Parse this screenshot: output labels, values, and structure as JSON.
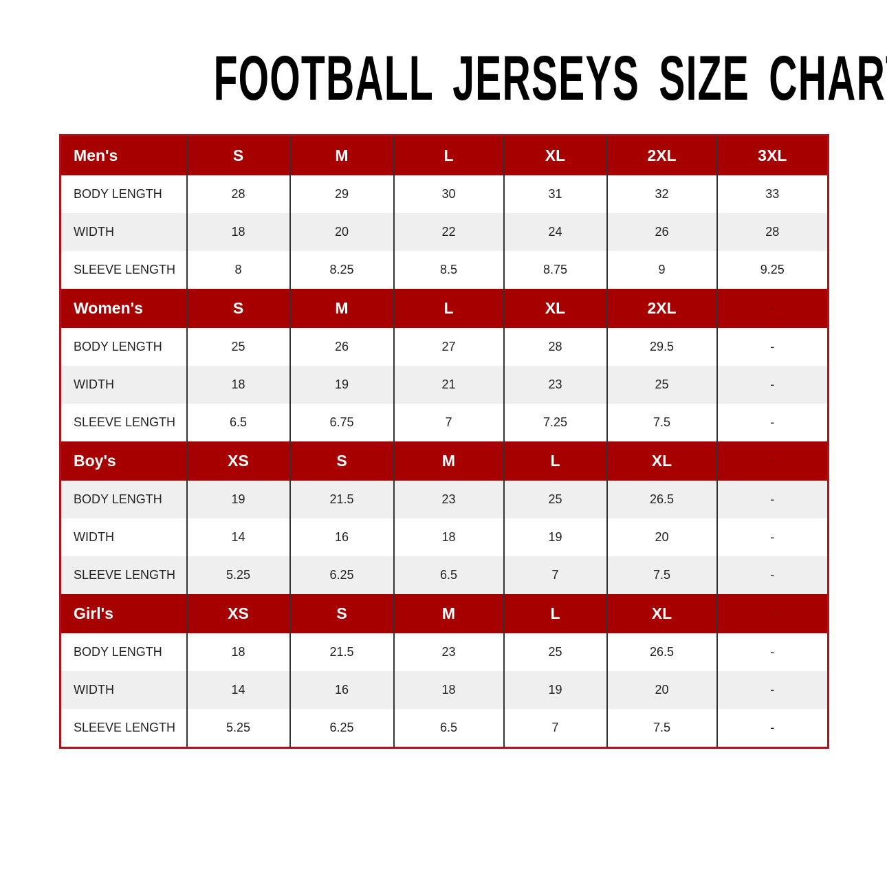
{
  "title": "FOOTBALL JERSEYS SIZE CHART",
  "sections": [
    {
      "header": [
        "Men's",
        "S",
        "M",
        "L",
        "XL",
        "2XL",
        "3XL"
      ],
      "rows": [
        [
          "BODY LENGTH",
          28,
          29,
          30,
          31,
          32,
          33
        ],
        [
          "WIDTH",
          18,
          20,
          22,
          24,
          26,
          28
        ],
        [
          "SLEEVE LENGTH",
          8,
          8.25,
          8.5,
          8.75,
          9,
          9.25
        ]
      ]
    },
    {
      "header": [
        "Women's",
        "S",
        "M",
        "L",
        "XL",
        "2XL",
        "-"
      ],
      "rows": [
        [
          "BODY LENGTH",
          25,
          26,
          27,
          28,
          29.5,
          "-"
        ],
        [
          "WIDTH",
          18,
          19,
          21,
          23,
          25,
          "-"
        ],
        [
          "SLEEVE LENGTH",
          6.5,
          6.75,
          7,
          7.25,
          7.5,
          "-"
        ]
      ]
    },
    {
      "header": [
        "Boy's",
        "XS",
        "S",
        "M",
        "L",
        "XL",
        "-"
      ],
      "rows": [
        [
          "BODY LENGTH",
          19,
          21.5,
          23,
          25,
          26.5,
          "-"
        ],
        [
          "WIDTH",
          14,
          16,
          18,
          19,
          20,
          "-"
        ],
        [
          "SLEEVE LENGTH",
          5.25,
          6.25,
          6.5,
          7,
          7.5,
          "-"
        ]
      ]
    },
    {
      "header": [
        "Girl's",
        "XS",
        "S",
        "M",
        "L",
        "XL",
        "-"
      ],
      "rows": [
        [
          "BODY LENGTH",
          18,
          21.5,
          23,
          25,
          26.5,
          "-"
        ],
        [
          "WIDTH",
          14,
          16,
          18,
          19,
          20,
          "-"
        ],
        [
          "SLEEVE LENGTH",
          5.25,
          6.25,
          6.5,
          7,
          7.5,
          "-"
        ]
      ]
    }
  ]
}
